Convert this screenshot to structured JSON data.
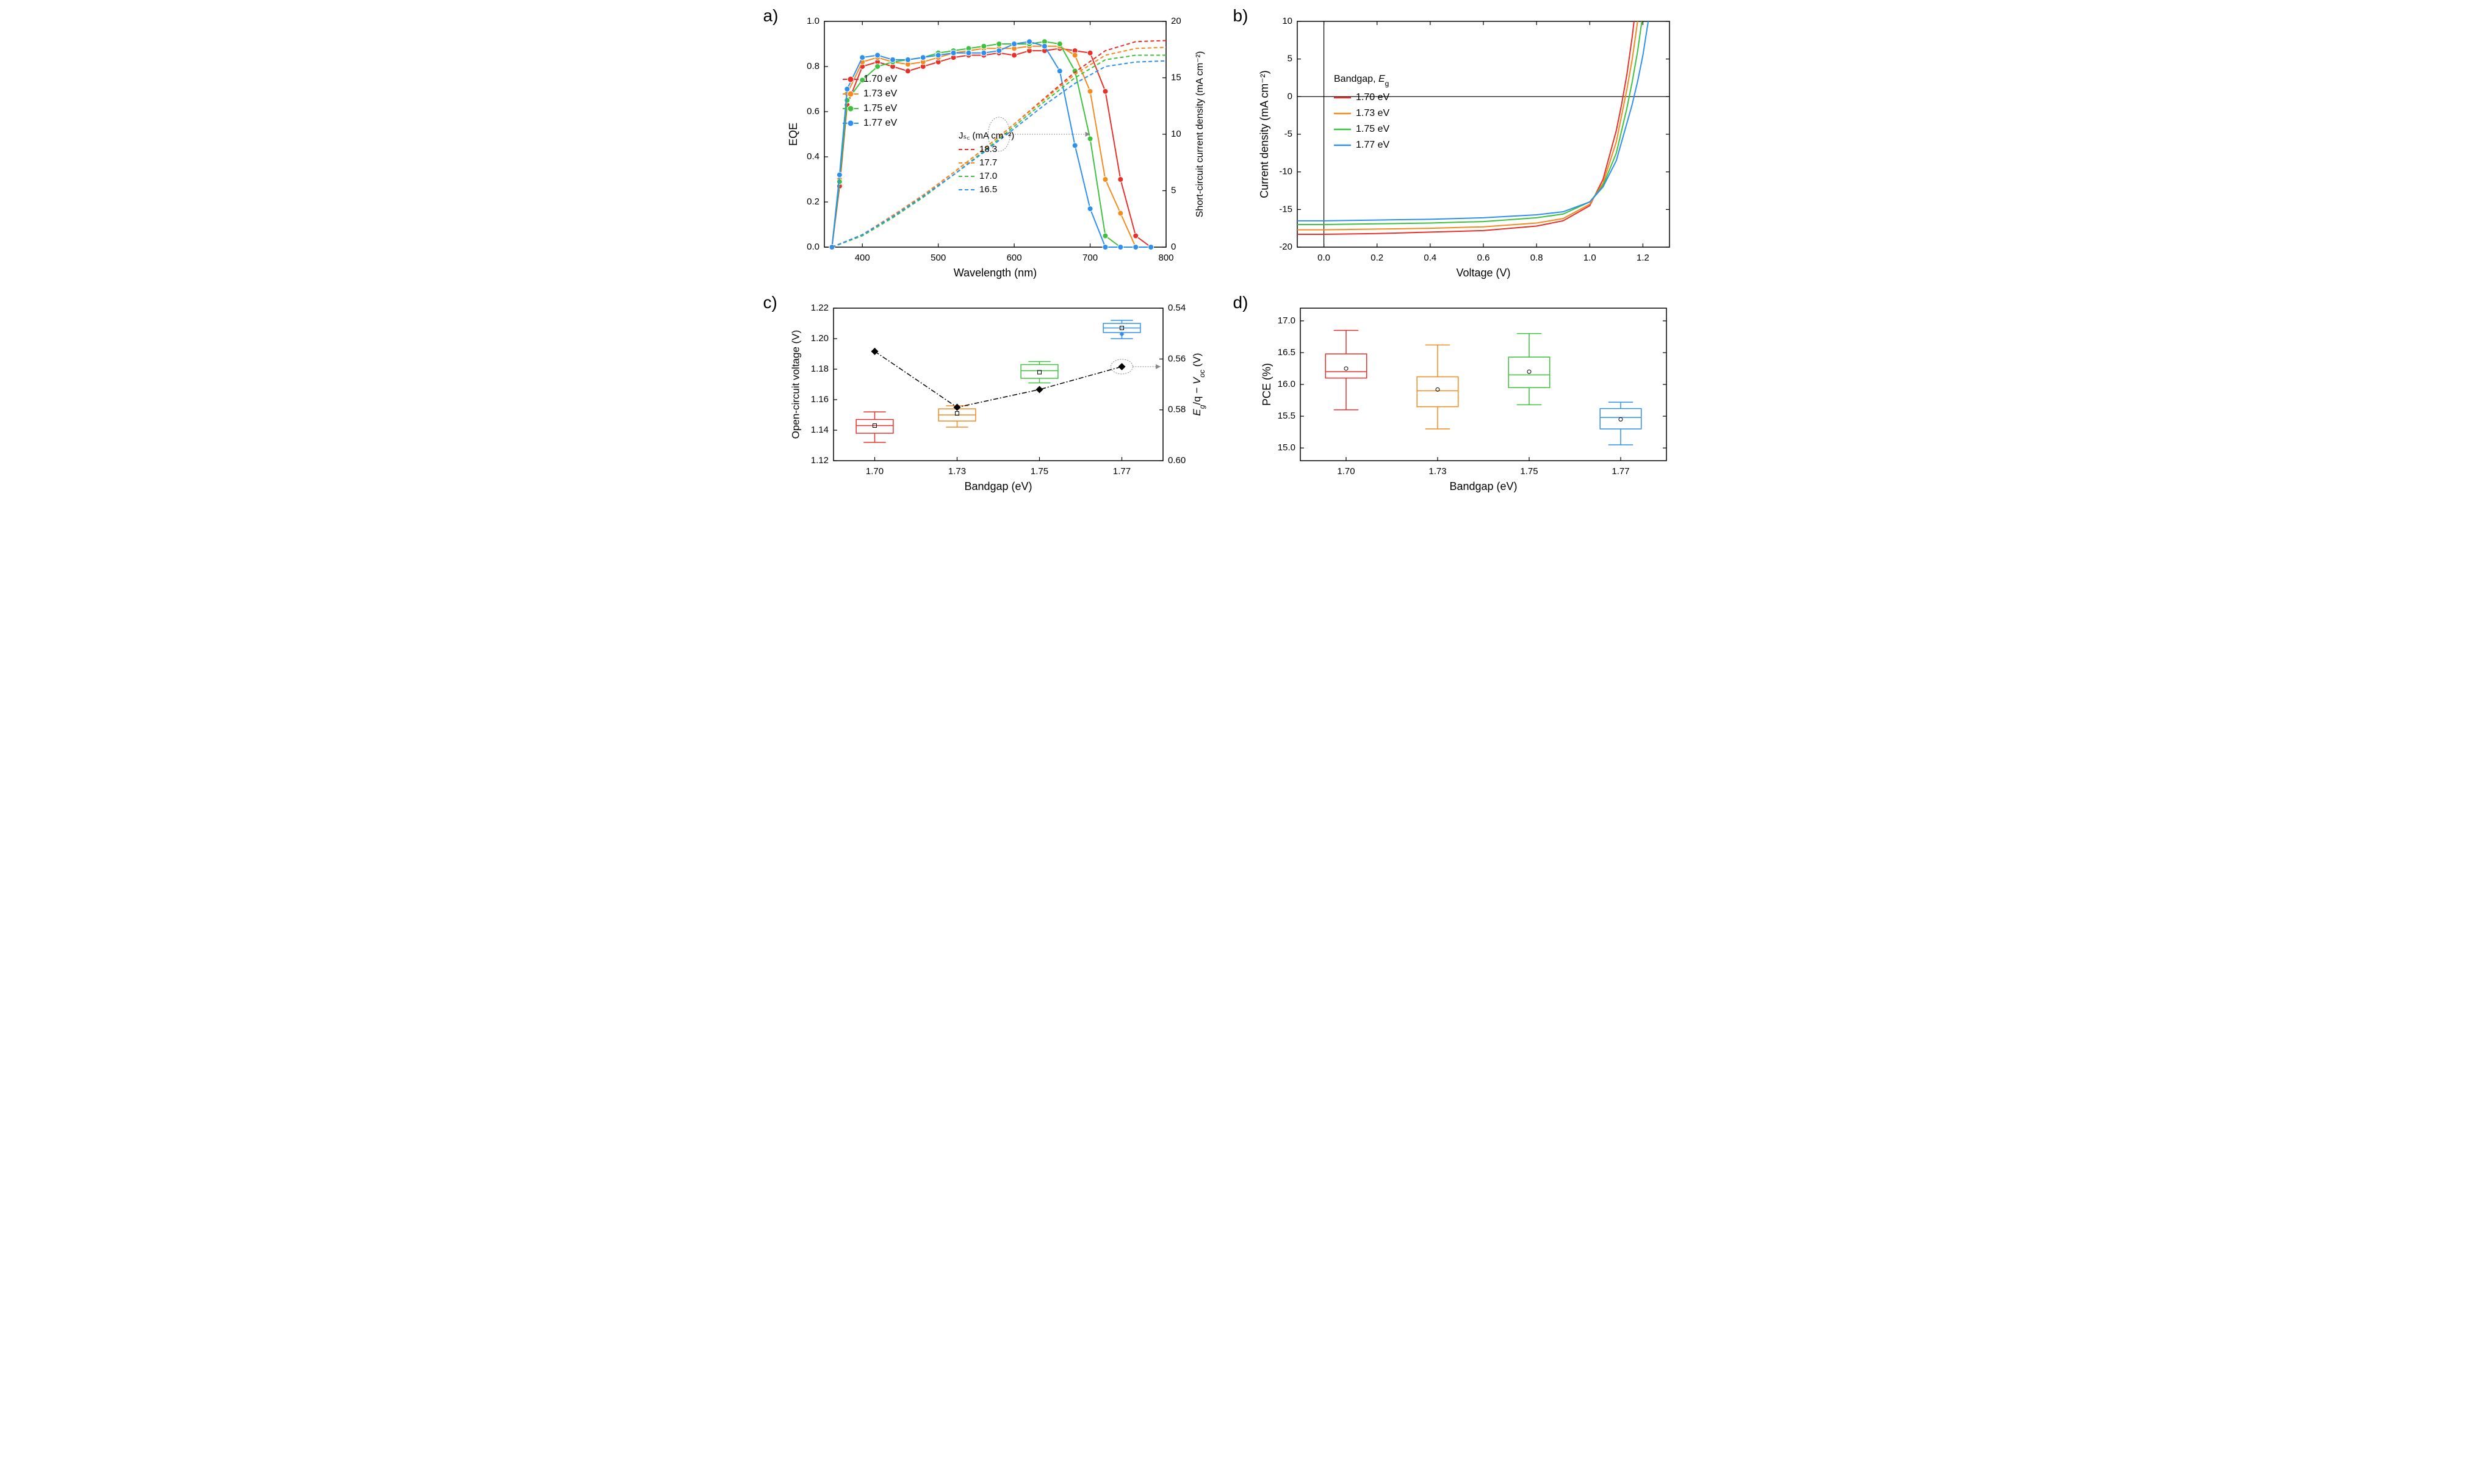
{
  "colors": {
    "red": "#e8302a",
    "orange": "#f58a1f",
    "green": "#3fc13f",
    "blue": "#2f8fef",
    "black": "#000000",
    "background": "#ffffff",
    "anno_gray": "#888888"
  },
  "panel_labels": {
    "a": "a)",
    "b": "b)",
    "c": "c)",
    "d": "d)"
  },
  "panel_a": {
    "type": "line+scatter dual-axis",
    "xlabel": "Wavelength (nm)",
    "ylabel_left": "EQE",
    "ylabel_right": "Short-circuit current density (mA cm⁻²)",
    "xlim": [
      350,
      800
    ],
    "xticks": [
      400,
      500,
      600,
      700,
      800
    ],
    "ylim_left": [
      0.0,
      1.0
    ],
    "yticks_left": [
      0.0,
      0.2,
      0.4,
      0.6,
      0.8,
      1.0
    ],
    "ylim_right": [
      0,
      20
    ],
    "yticks_right": [
      0,
      5,
      10,
      15,
      20
    ],
    "legend_title_eqe": null,
    "legend_eqe": [
      {
        "label": "1.70 eV",
        "color": "#e8302a"
      },
      {
        "label": "1.73 eV",
        "color": "#f58a1f"
      },
      {
        "label": "1.75 eV",
        "color": "#3fc13f"
      },
      {
        "label": "1.77 eV",
        "color": "#2f8fef"
      }
    ],
    "legend_jsc_title": "Jₛ꜀ (mA cm⁻²)",
    "legend_jsc": [
      {
        "label": "18.3",
        "color": "#e8302a"
      },
      {
        "label": "17.7",
        "color": "#f58a1f"
      },
      {
        "label": "17.0",
        "color": "#3fc13f"
      },
      {
        "label": "16.5",
        "color": "#2f8fef"
      }
    ],
    "eqe_x": [
      360,
      370,
      380,
      400,
      420,
      440,
      460,
      480,
      500,
      520,
      540,
      560,
      580,
      600,
      620,
      640,
      660,
      680,
      700,
      720,
      740,
      760,
      780
    ],
    "eqe_series": {
      "1.70": [
        0.0,
        0.27,
        0.63,
        0.8,
        0.82,
        0.8,
        0.78,
        0.8,
        0.82,
        0.84,
        0.85,
        0.85,
        0.86,
        0.85,
        0.87,
        0.87,
        0.88,
        0.87,
        0.86,
        0.69,
        0.3,
        0.05,
        0.0
      ],
      "1.73": [
        0.0,
        0.3,
        0.68,
        0.82,
        0.84,
        0.82,
        0.81,
        0.82,
        0.84,
        0.86,
        0.87,
        0.88,
        0.88,
        0.88,
        0.89,
        0.89,
        0.89,
        0.85,
        0.69,
        0.3,
        0.15,
        0.0,
        0.0
      ],
      "1.75": [
        0.0,
        0.29,
        0.65,
        0.74,
        0.8,
        0.82,
        0.83,
        0.84,
        0.86,
        0.87,
        0.88,
        0.89,
        0.9,
        0.9,
        0.9,
        0.91,
        0.9,
        0.78,
        0.48,
        0.05,
        0.0,
        0.0,
        0.0
      ],
      "1.77": [
        0.0,
        0.32,
        0.7,
        0.84,
        0.85,
        0.83,
        0.83,
        0.84,
        0.85,
        0.86,
        0.86,
        0.86,
        0.87,
        0.9,
        0.91,
        0.89,
        0.78,
        0.45,
        0.17,
        0.0,
        0.0,
        0.0,
        0.0
      ]
    },
    "jsc_x": [
      360,
      400,
      440,
      480,
      520,
      560,
      600,
      640,
      680,
      720,
      760,
      800
    ],
    "jsc_series": {
      "1.70": [
        0.0,
        1.1,
        2.8,
        4.6,
        6.6,
        8.7,
        10.9,
        13.2,
        15.5,
        17.4,
        18.2,
        18.3
      ],
      "1.73": [
        0.0,
        1.1,
        2.8,
        4.6,
        6.6,
        8.7,
        10.9,
        13.1,
        15.3,
        17.0,
        17.6,
        17.7
      ],
      "1.75": [
        0.0,
        1.0,
        2.6,
        4.4,
        6.4,
        8.5,
        10.7,
        12.9,
        15.0,
        16.6,
        17.0,
        17.0
      ],
      "1.77": [
        0.0,
        1.1,
        2.7,
        4.5,
        6.4,
        8.4,
        10.5,
        12.6,
        14.5,
        16.0,
        16.4,
        16.5
      ]
    }
  },
  "panel_b": {
    "type": "line",
    "xlabel": "Voltage (V)",
    "ylabel": "Current density (mA cm⁻²)",
    "xlim": [
      -0.1,
      1.3
    ],
    "xticks": [
      0.0,
      0.2,
      0.4,
      0.6,
      0.8,
      1.0,
      1.2
    ],
    "ylim": [
      -20,
      10
    ],
    "yticks": [
      -20,
      -15,
      -10,
      -5,
      0,
      5,
      10
    ],
    "legend_title": "Bandgap, E_g",
    "legend_title_display": "Bandgap, Eg",
    "legend": [
      {
        "label": "1.70 eV",
        "color": "#e8302a"
      },
      {
        "label": "1.73 eV",
        "color": "#f58a1f"
      },
      {
        "label": "1.75 eV",
        "color": "#3fc13f"
      },
      {
        "label": "1.77 eV",
        "color": "#2f8fef"
      }
    ],
    "jv_x": [
      -0.1,
      0.0,
      0.2,
      0.4,
      0.6,
      0.8,
      0.9,
      1.0,
      1.05,
      1.1,
      1.12,
      1.14,
      1.16,
      1.18,
      1.2,
      1.22,
      1.24,
      1.26,
      1.28,
      1.3
    ],
    "jv_series": {
      "1.70": [
        -18.3,
        -18.3,
        -18.2,
        -18.0,
        -17.8,
        -17.2,
        -16.5,
        -14.5,
        -11.0,
        -4.5,
        -1.0,
        3.0,
        8.0,
        14.0,
        22.0,
        30.0,
        40.0,
        52.0,
        65.0,
        80.0
      ],
      "1.73": [
        -17.7,
        -17.7,
        -17.6,
        -17.5,
        -17.3,
        -16.8,
        -16.2,
        -14.3,
        -11.5,
        -6.0,
        -2.5,
        1.0,
        5.0,
        10.0,
        16.0,
        24.0,
        33.0,
        44.0,
        56.0,
        70.0
      ],
      "1.75": [
        -17.0,
        -17.0,
        -16.9,
        -16.8,
        -16.6,
        -16.1,
        -15.6,
        -14.0,
        -11.8,
        -7.5,
        -4.5,
        -1.5,
        2.0,
        6.0,
        11.0,
        17.0,
        25.0,
        35.0,
        47.0,
        60.0
      ],
      "1.77": [
        -16.5,
        -16.5,
        -16.4,
        -16.3,
        -16.1,
        -15.7,
        -15.3,
        -14.0,
        -12.0,
        -8.5,
        -6.0,
        -3.5,
        -1.0,
        2.0,
        5.5,
        10.0,
        15.0,
        22.0,
        30.0,
        40.0
      ]
    }
  },
  "panel_c": {
    "type": "boxplot + line dual-axis",
    "xlabel": "Bandgap (eV)",
    "ylabel_left": "Open-circuit voltage (V)",
    "ylabel_right": "E_g/q − V_oc (V)",
    "ylabel_right_display": "Eg/q − Voc (V)",
    "xcats": [
      "1.70",
      "1.73",
      "1.75",
      "1.77"
    ],
    "ylim_left": [
      1.12,
      1.22
    ],
    "yticks_left": [
      1.12,
      1.14,
      1.16,
      1.18,
      1.2,
      1.22
    ],
    "ylim_right": [
      0.6,
      0.54
    ],
    "yticks_right": [
      0.54,
      0.56,
      0.58,
      0.6
    ],
    "boxes": [
      {
        "cat": "1.70",
        "color": "#e8302a",
        "q1": 1.138,
        "med": 1.143,
        "q3": 1.147,
        "whisker_lo": 1.132,
        "whisker_hi": 1.152,
        "mean": 1.143
      },
      {
        "cat": "1.73",
        "color": "#f58a1f",
        "q1": 1.146,
        "med": 1.15,
        "q3": 1.154,
        "whisker_lo": 1.142,
        "whisker_hi": 1.156,
        "mean": 1.151
      },
      {
        "cat": "1.75",
        "color": "#3fc13f",
        "q1": 1.174,
        "med": 1.179,
        "q3": 1.183,
        "whisker_lo": 1.171,
        "whisker_hi": 1.185,
        "mean": 1.178
      },
      {
        "cat": "1.77",
        "color": "#2f8fef",
        "q1": 1.204,
        "med": 1.207,
        "q3": 1.21,
        "whisker_lo": 1.2,
        "whisker_hi": 1.212,
        "mean": 1.207,
        "outlier": 1.203
      }
    ],
    "deficit_points": [
      {
        "cat": "1.70",
        "y": 0.557
      },
      {
        "cat": "1.73",
        "y": 0.579
      },
      {
        "cat": "1.75",
        "y": 0.572
      },
      {
        "cat": "1.77",
        "y": 0.563
      }
    ]
  },
  "panel_d": {
    "type": "boxplot",
    "xlabel": "Bandgap (eV)",
    "ylabel": "PCE (%)",
    "xcats": [
      "1.70",
      "1.73",
      "1.75",
      "1.77"
    ],
    "ylim": [
      14.8,
      17.2
    ],
    "yticks": [
      15.0,
      15.5,
      16.0,
      16.5,
      17.0
    ],
    "boxes": [
      {
        "cat": "1.70",
        "color": "#e8302a",
        "q1": 16.1,
        "med": 16.2,
        "q3": 16.48,
        "whisker_lo": 15.6,
        "whisker_hi": 16.85,
        "mean": 16.25
      },
      {
        "cat": "1.73",
        "color": "#f58a1f",
        "q1": 15.65,
        "med": 15.9,
        "q3": 16.12,
        "whisker_lo": 15.3,
        "whisker_hi": 16.62,
        "mean": 15.92
      },
      {
        "cat": "1.75",
        "color": "#3fc13f",
        "q1": 15.95,
        "med": 16.15,
        "q3": 16.43,
        "whisker_lo": 15.68,
        "whisker_hi": 16.8,
        "mean": 16.2
      },
      {
        "cat": "1.77",
        "color": "#2f8fef",
        "q1": 15.3,
        "med": 15.48,
        "q3": 15.62,
        "whisker_lo": 15.05,
        "whisker_hi": 15.72,
        "mean": 15.45
      }
    ]
  }
}
